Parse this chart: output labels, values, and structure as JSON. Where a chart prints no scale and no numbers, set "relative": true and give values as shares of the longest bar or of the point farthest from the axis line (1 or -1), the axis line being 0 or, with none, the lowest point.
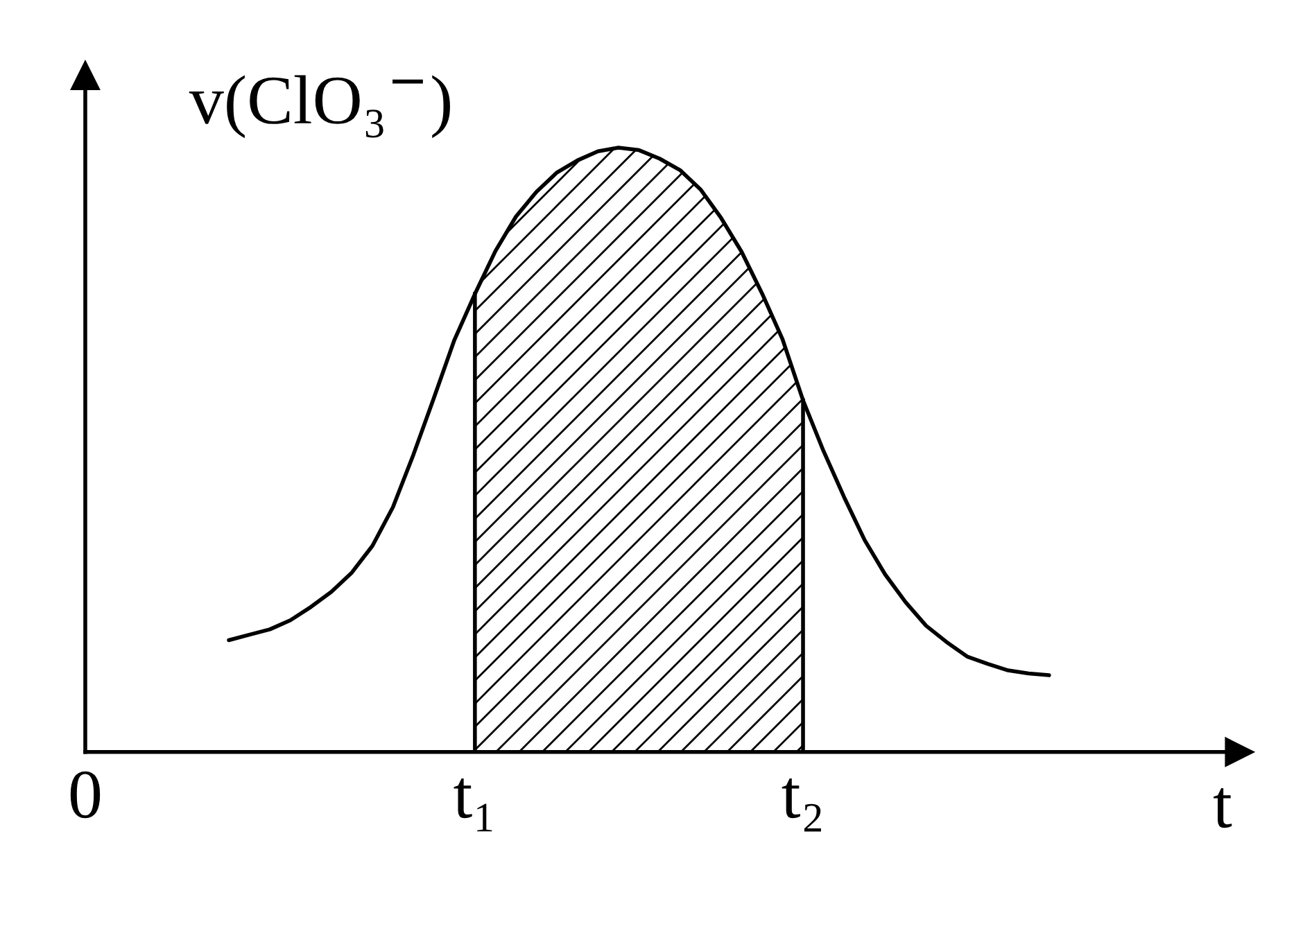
{
  "chart_data": {
    "type": "line",
    "relative": true,
    "xlabel": "t",
    "ylabel": "v(ClO₃$^{−}$)",
    "categories": [
      "0",
      null,
      null,
      null,
      null,
      null,
      null,
      null,
      null,
      null,
      null,
      null,
      null,
      null,
      null,
      null,
      null,
      null,
      null,
      "t₁",
      null,
      null,
      null,
      null,
      null,
      null,
      null,
      null,
      null,
      null,
      null,
      null,
      null,
      null,
      null,
      "t₂",
      null,
      null,
      null,
      null,
      null,
      null,
      null,
      null,
      null,
      null,
      null,
      null,
      null,
      null,
      null,
      null,
      null,
      null,
      null,
      null,
      null
    ],
    "series": [
      {
        "color": "#000000",
        "values": [
          null,
          null,
          null,
          null,
          null,
          null,
          null,
          0.185,
          0.194,
          0.203,
          0.218,
          0.24,
          0.265,
          0.297,
          0.341,
          0.405,
          0.492,
          0.586,
          0.682,
          0.758,
          0.829,
          0.886,
          0.927,
          0.959,
          0.979,
          0.994,
          1,
          0.996,
          0.982,
          0.963,
          0.931,
          0.884,
          0.828,
          0.759,
          0.683,
          0.582,
          0.498,
          0.422,
          0.351,
          0.294,
          0.248,
          0.209,
          0.182,
          0.158,
          0.146,
          0.135,
          0.13,
          0.127,
          null,
          null,
          null,
          null,
          null,
          null,
          null,
          null,
          null
        ]
      },
      {
        "type": "area",
        "color": "#000000",
        "values": [
          null,
          null,
          null,
          null,
          null,
          null,
          null,
          null,
          null,
          null,
          null,
          null,
          null,
          null,
          null,
          null,
          null,
          null,
          null,
          0.758,
          0.829,
          0.886,
          0.927,
          0.959,
          0.979,
          0.994,
          1,
          0.996,
          0.982,
          0.963,
          0.931,
          0.884,
          0.828,
          0.759,
          0.683,
          0.582,
          null,
          null,
          null,
          null,
          null,
          null,
          null,
          null,
          null,
          null,
          null,
          null,
          null,
          null,
          null,
          null,
          null,
          null,
          null,
          null,
          null
        ]
      }
    ]
  }
}
